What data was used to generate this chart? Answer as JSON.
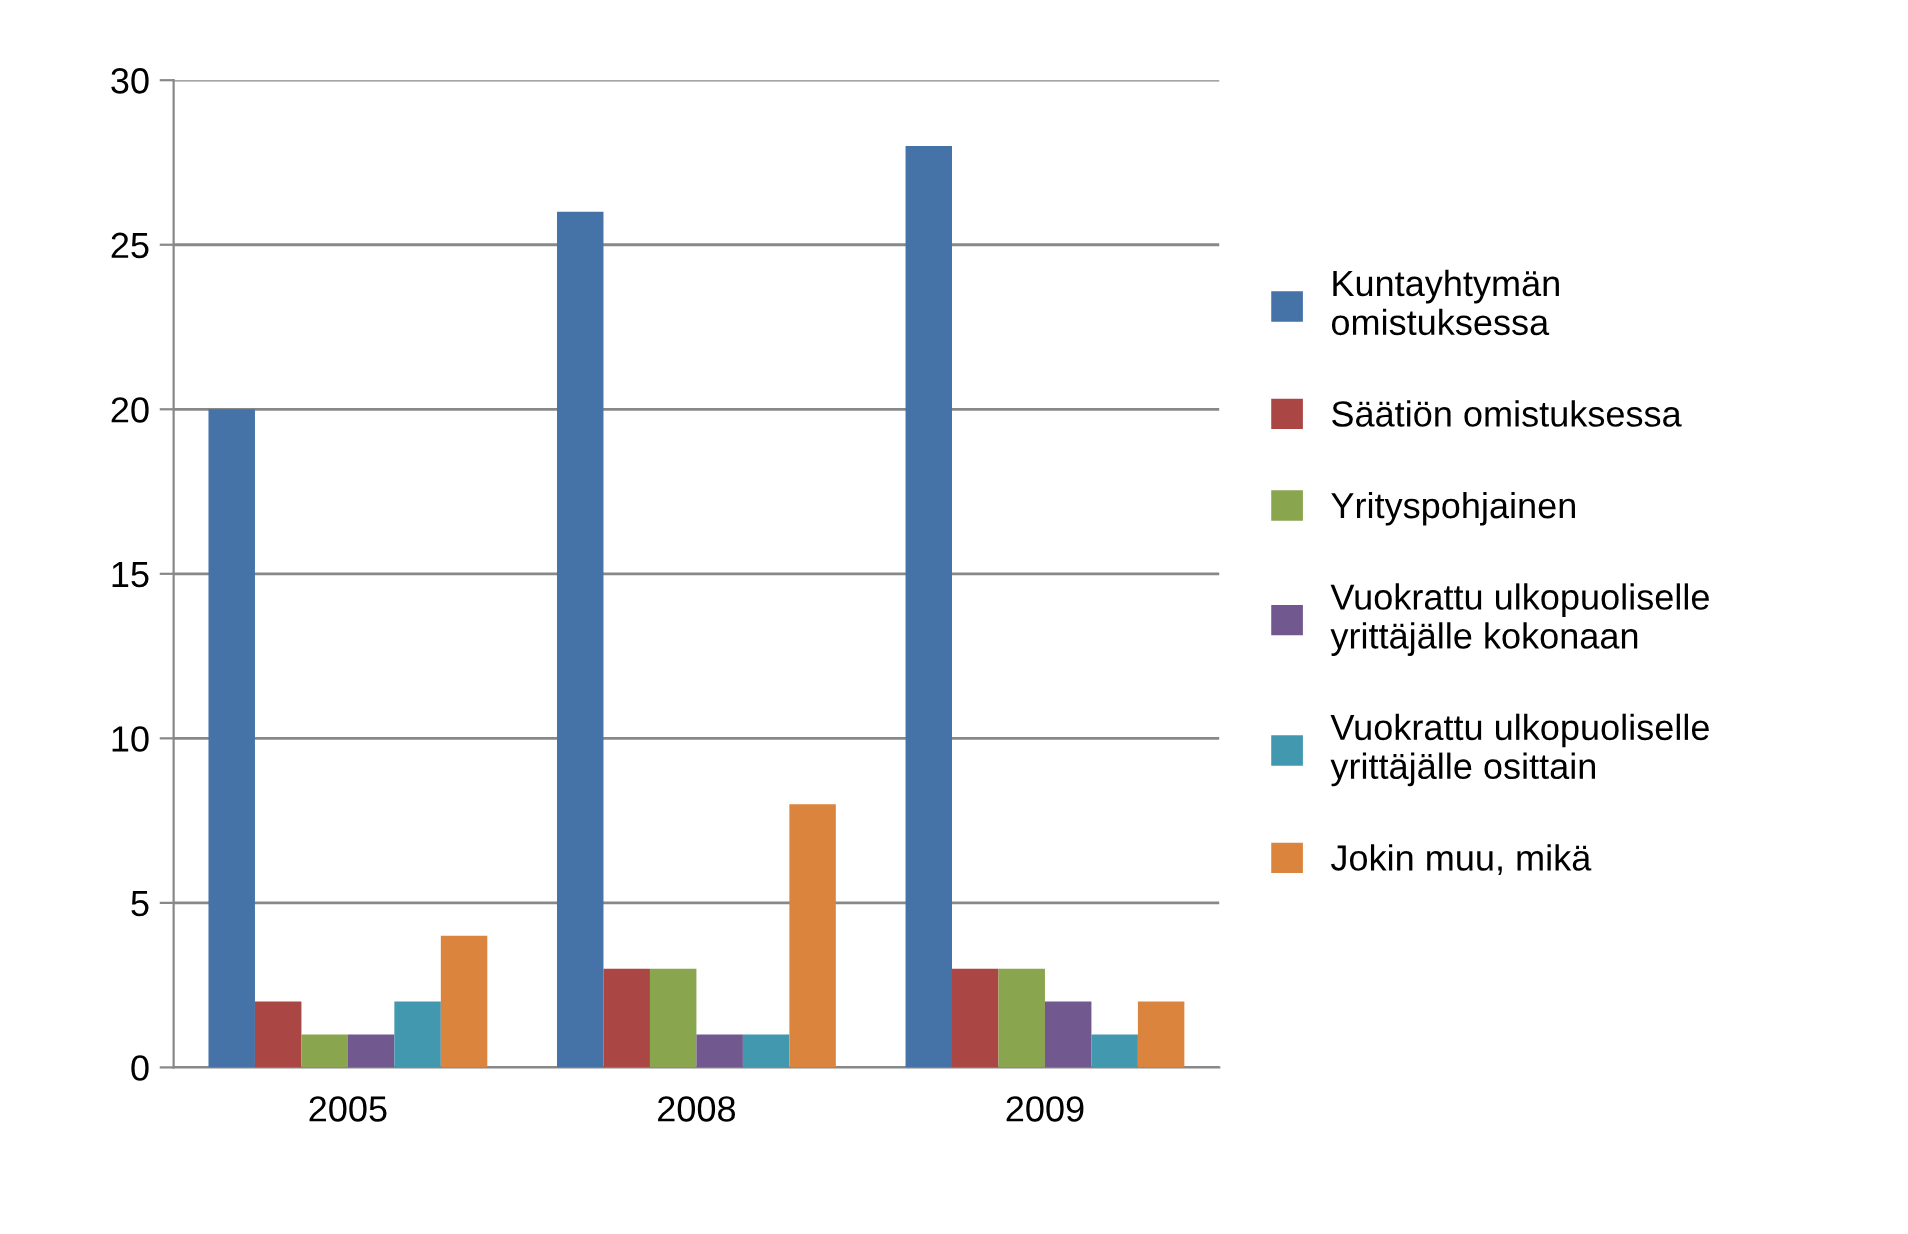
{
  "chart_data": {
    "type": "bar",
    "categories": [
      "2005",
      "2008",
      "2009"
    ],
    "series": [
      {
        "name": "Kuntayhtymän\nomistuksessa",
        "color": "#4572a7",
        "values": [
          20,
          26,
          28
        ]
      },
      {
        "name": "Säätiön omistuksessa",
        "color": "#aa4643",
        "values": [
          2,
          3,
          3
        ]
      },
      {
        "name": "Yrityspohjainen",
        "color": "#89a54e",
        "values": [
          1,
          3,
          3
        ]
      },
      {
        "name": "Vuokrattu ulkopuoliselle\nyrittäjälle kokonaan",
        "color": "#71588f",
        "values": [
          1,
          1,
          2
        ]
      },
      {
        "name": "Vuokrattu ulkopuoliselle\nyrittäjälle osittain",
        "color": "#4198af",
        "values": [
          2,
          1,
          1
        ]
      },
      {
        "name": "Jokin muu, mikä",
        "color": "#db843d",
        "values": [
          4,
          8,
          2
        ]
      }
    ],
    "ylim": [
      0,
      30
    ],
    "yticks": [
      0,
      5,
      10,
      15,
      20,
      25,
      30
    ],
    "grid": "y",
    "legend": "right"
  }
}
